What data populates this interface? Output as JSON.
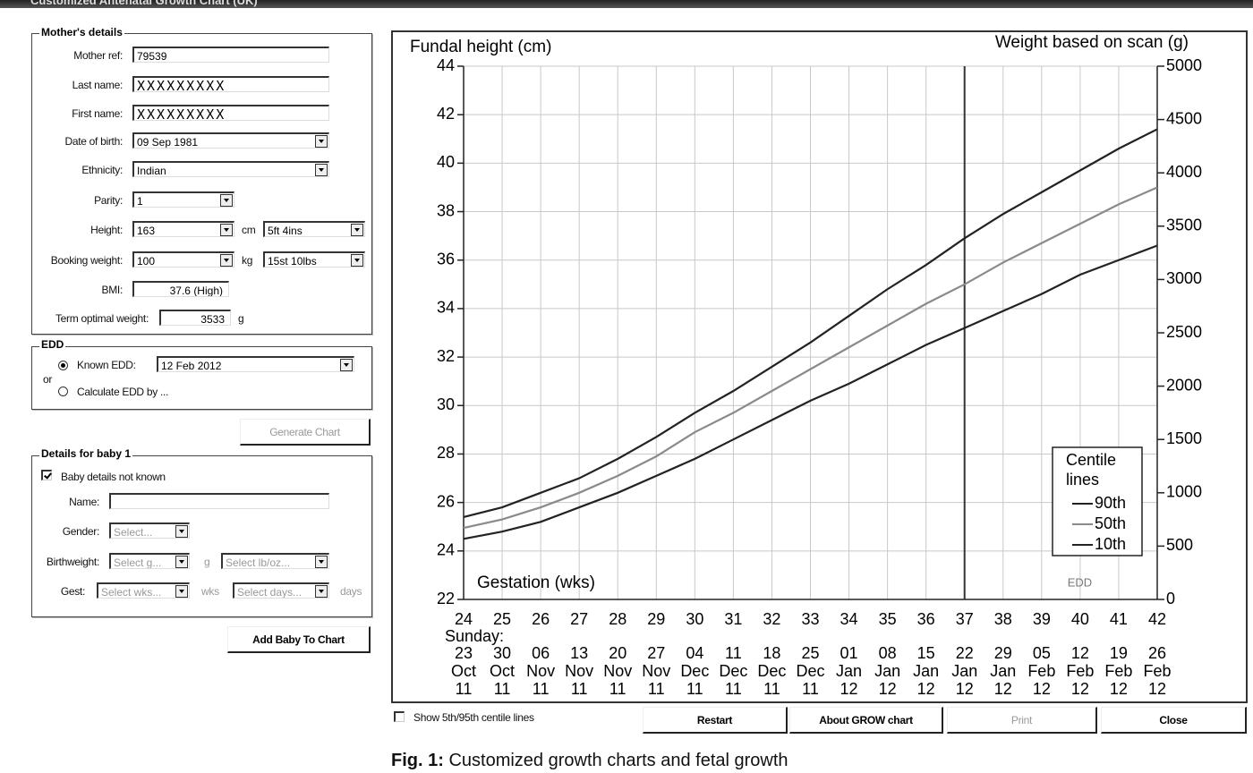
{
  "window": {
    "title": "Customized Antenatal Growth Chart (UK)"
  },
  "mother": {
    "legend": "Mother's details",
    "fields": [
      {
        "label": "Mother ref:",
        "value": "79539"
      },
      {
        "label": "Last name:",
        "value": "XXXXXXXXX"
      },
      {
        "label": "First name:",
        "value": "XXXXXXXXX"
      },
      {
        "label": "Date of birth:",
        "value": "09 Sep 1981"
      },
      {
        "label": "Ethnicity:",
        "value": "Indian"
      },
      {
        "label": "Parity:",
        "value": "1"
      },
      {
        "label": "Height:",
        "value": "163",
        "unit": "cm",
        "value2": "5ft 4ins"
      },
      {
        "label": "Booking weight:",
        "value": "100",
        "unit": "kg",
        "value2": "15st 10lbs"
      },
      {
        "label": "BMI:",
        "value": "37.6 (High)"
      },
      {
        "label": "Term optimal weight:",
        "value": "3533",
        "unit": "g"
      }
    ]
  },
  "edd": {
    "legend": "EDD",
    "known_label": "Known EDD:",
    "known_value": "12 Feb 2012",
    "or": "or",
    "calculate_label": "Calculate EDD by ..."
  },
  "generate_button": "Generate Chart",
  "baby": {
    "legend": "Details for baby 1",
    "not_known": "Baby details not known",
    "name_label": "Name:",
    "gender_label": "Gender:",
    "gender_value": "Select...",
    "birthweight_label": "Birthweight:",
    "birthweight_g": "Select g...",
    "birthweight_g_unit": "g",
    "birthweight_lb": "Select lb/oz...",
    "gest_label": "Gest:",
    "gest_wks": "Select wks...",
    "gest_wks_unit": "wks",
    "gest_days": "Select days...",
    "gest_days_unit": "days"
  },
  "add_baby_button": "Add Baby To Chart",
  "footer": {
    "checkbox": "Show 5th/95th centile lines",
    "buttons": [
      "Restart",
      "About GROW chart",
      "Print",
      "Close"
    ]
  },
  "caption": {
    "label": "Fig. 1:",
    "text": "Customized growth charts and fetal growth"
  },
  "chart_data": {
    "type": "line",
    "y_label": "Fundal height (cm)",
    "y2_label": "Weight based on scan (g)",
    "x_label": "Gestation (wks)",
    "x": [
      24,
      25,
      26,
      27,
      28,
      29,
      30,
      31,
      32,
      33,
      34,
      35,
      36,
      37,
      38,
      39,
      40,
      41,
      42
    ],
    "xlim": [
      24,
      42
    ],
    "xticks": [
      24,
      25,
      26,
      27,
      28,
      29,
      30,
      31,
      32,
      33,
      34,
      35,
      36,
      37,
      38,
      39,
      40,
      41,
      42
    ],
    "ylim": [
      22,
      44
    ],
    "yticks": [
      22,
      24,
      26,
      28,
      30,
      32,
      34,
      36,
      38,
      40,
      42,
      44
    ],
    "y2lim": [
      0,
      5000
    ],
    "y2ticks": [
      0,
      500,
      1000,
      1500,
      2000,
      2500,
      3000,
      3500,
      4000,
      4500,
      5000
    ],
    "date_header": "Sunday:",
    "date_labels": [
      [
        "23",
        "Oct",
        "11"
      ],
      [
        "30",
        "Oct",
        "11"
      ],
      [
        "06",
        "Nov",
        "11"
      ],
      [
        "13",
        "Nov",
        "11"
      ],
      [
        "20",
        "Nov",
        "11"
      ],
      [
        "27",
        "Nov",
        "11"
      ],
      [
        "04",
        "Dec",
        "11"
      ],
      [
        "11",
        "Dec",
        "11"
      ],
      [
        "18",
        "Dec",
        "11"
      ],
      [
        "25",
        "Dec",
        "11"
      ],
      [
        "01",
        "Jan",
        "12"
      ],
      [
        "08",
        "Jan",
        "12"
      ],
      [
        "15",
        "Jan",
        "12"
      ],
      [
        "22",
        "Jan",
        "12"
      ],
      [
        "29",
        "Jan",
        "12"
      ],
      [
        "05",
        "Feb",
        "12"
      ],
      [
        "12",
        "Feb",
        "12"
      ],
      [
        "19",
        "Feb",
        "12"
      ],
      [
        "26",
        "Feb",
        "12"
      ]
    ],
    "grid": true,
    "legend_title": [
      "Centile",
      "lines"
    ],
    "legend_position": "lower right",
    "annotations": [
      {
        "text": "EDD",
        "x": 37
      }
    ],
    "series": [
      {
        "name": "90th",
        "color": "#222222",
        "values": [
          25.4,
          25.8,
          26.4,
          27.0,
          27.8,
          28.7,
          29.7,
          30.6,
          31.6,
          32.6,
          33.7,
          34.8,
          35.8,
          36.9,
          37.9,
          38.8,
          39.7,
          40.6,
          41.4
        ]
      },
      {
        "name": "50th",
        "color": "#8a8a8a",
        "values": [
          24.95,
          25.3,
          25.8,
          26.4,
          27.1,
          27.9,
          28.9,
          29.7,
          30.6,
          31.5,
          32.4,
          33.3,
          34.2,
          35.0,
          35.9,
          36.7,
          37.5,
          38.3,
          39.0
        ]
      },
      {
        "name": "10th",
        "color": "#222222",
        "values": [
          24.5,
          24.8,
          25.2,
          25.8,
          26.4,
          27.1,
          27.8,
          28.6,
          29.4,
          30.2,
          30.9,
          31.7,
          32.5,
          33.2,
          33.9,
          34.6,
          35.4,
          36.0,
          36.6
        ]
      }
    ]
  }
}
